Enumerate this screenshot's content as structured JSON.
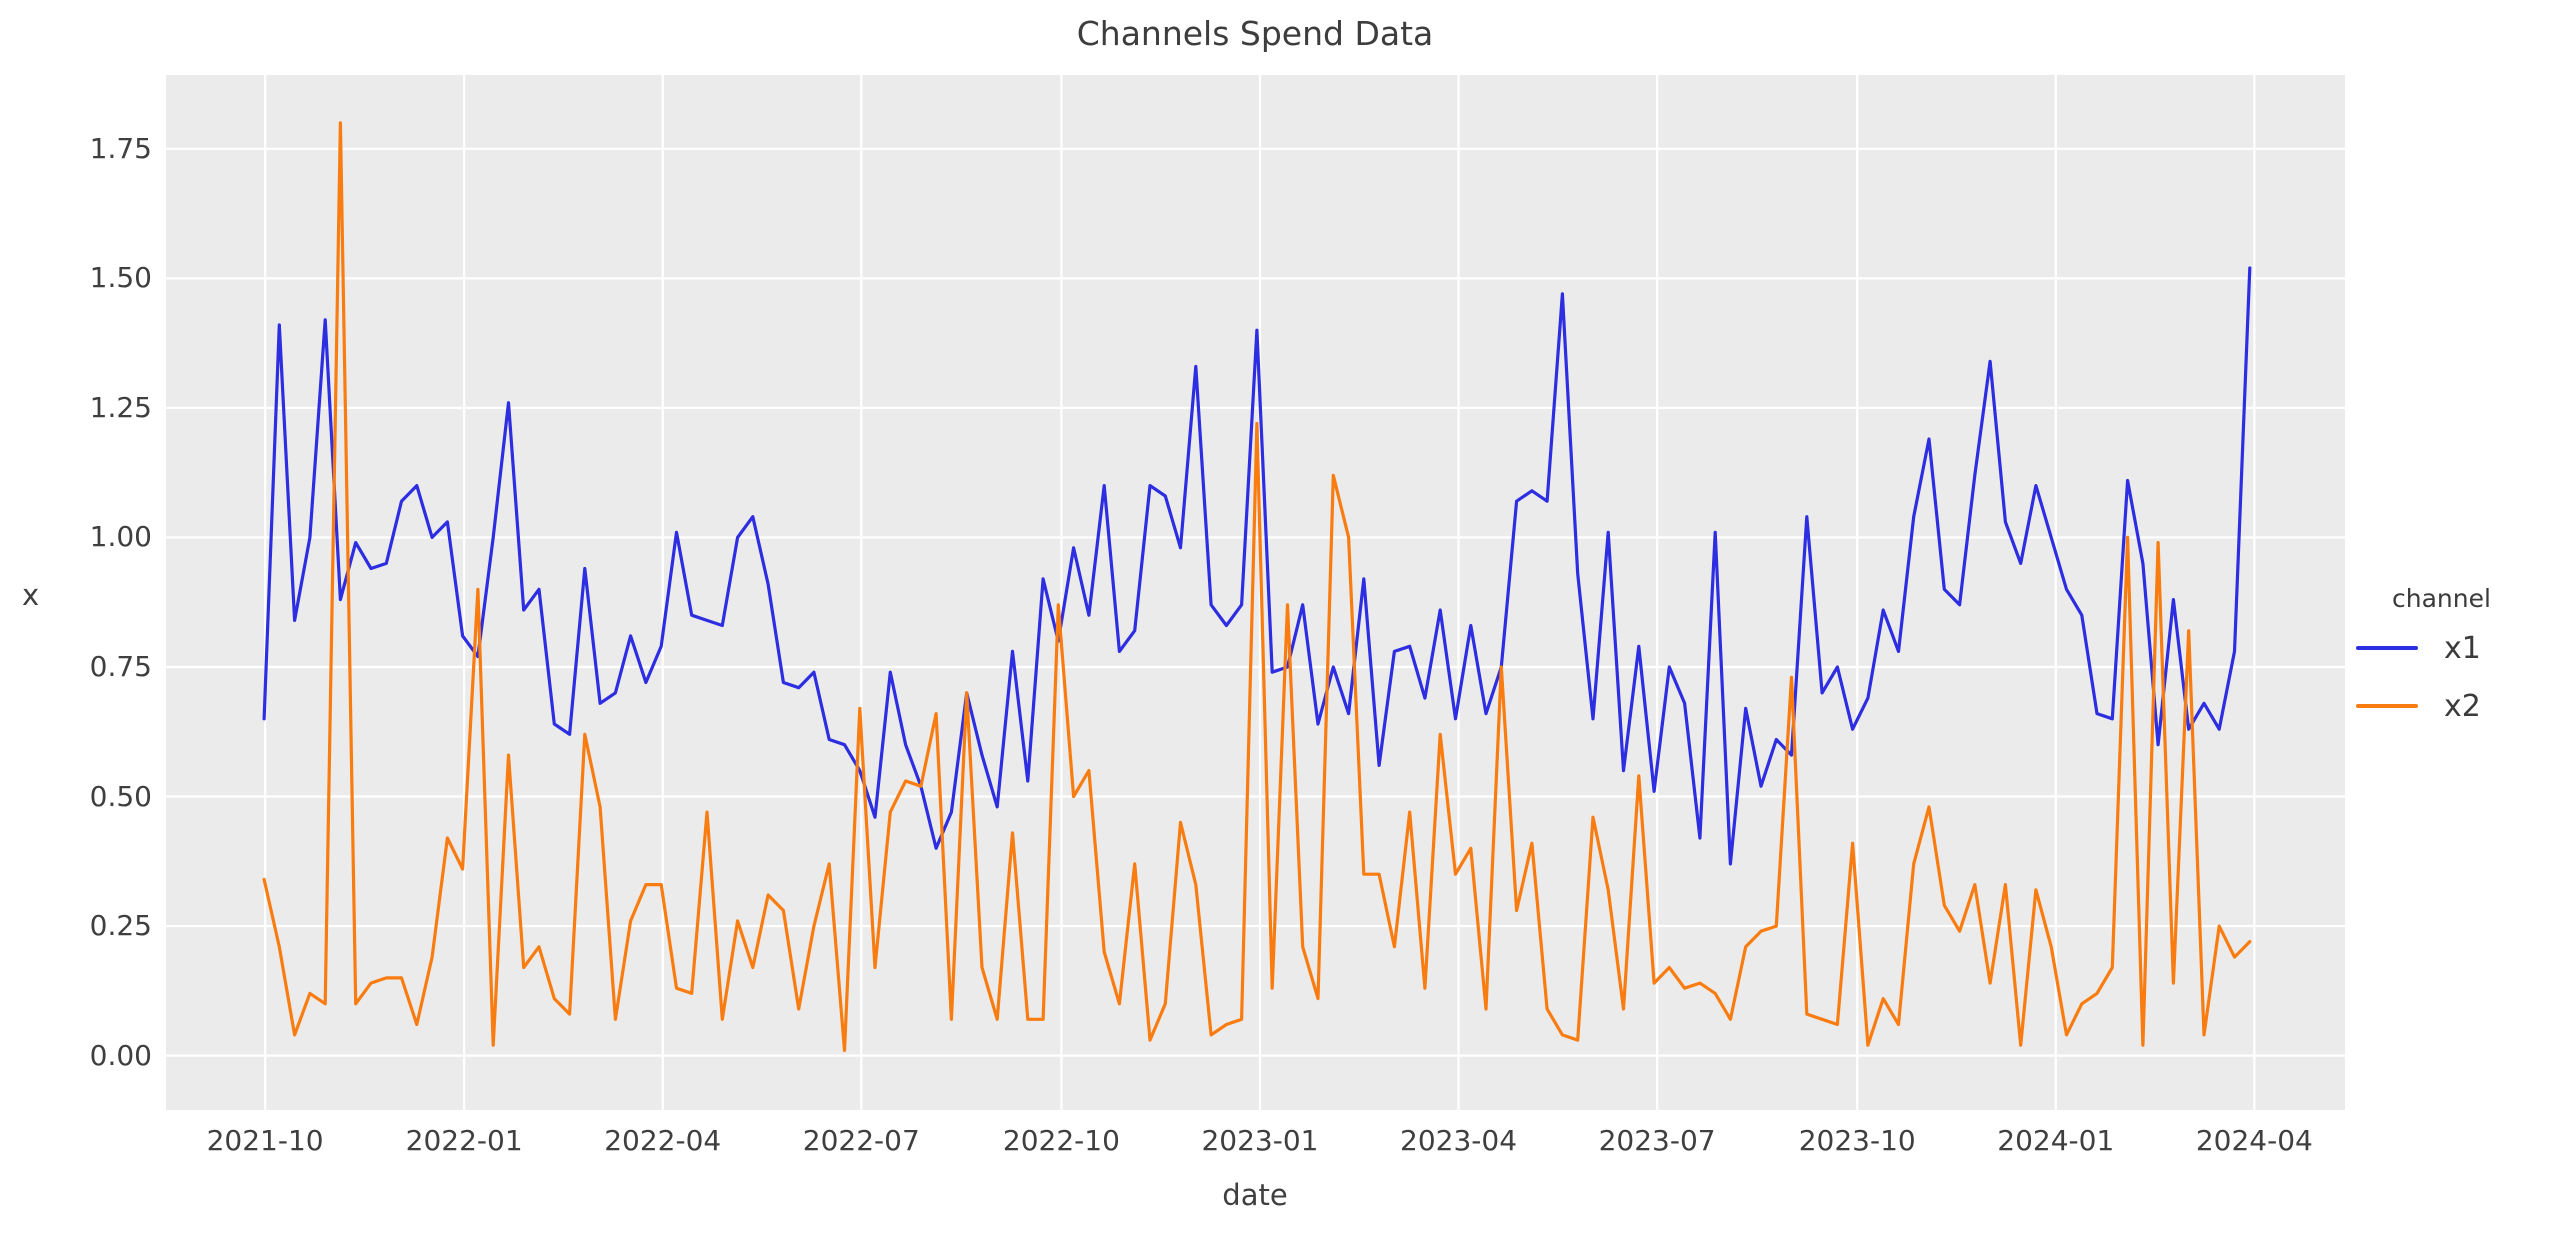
{
  "chart_data": {
    "type": "line",
    "title": "Channels Spend Data",
    "xlabel": "date",
    "ylabel": "x",
    "legend_title": "channel",
    "legend_position": "right-outside",
    "grid": true,
    "plot_bg_color": "#ebebeb",
    "grid_color": "#ffffff",
    "figure_bg_color": "#ffffff",
    "x_start_date": "2021-10-03",
    "x_step_days": 7,
    "n_points": 131,
    "ylim": [
      -0.105,
      1.8925
    ],
    "yticks": {
      "values": [
        0.0,
        0.25,
        0.5,
        0.75,
        1.0,
        1.25,
        1.5,
        1.75
      ],
      "labels": [
        "0.00",
        "0.25",
        "0.50",
        "0.75",
        "1.00",
        "1.25",
        "1.50",
        "1.75"
      ]
    },
    "xticks": {
      "positions": [
        0.07,
        13.1,
        26.1,
        39.1,
        52.2,
        65.2,
        78.2,
        91.2,
        104.3,
        117.3,
        130.3
      ],
      "labels": [
        "2021-10",
        "2022-01",
        "2022-04",
        "2022-07",
        "2022-10",
        "2023-01",
        "2023-04",
        "2023-07",
        "2023-10",
        "2024-01",
        "2024-04"
      ]
    },
    "series": [
      {
        "name": "x1",
        "color": "#2d2de1",
        "values": [
          0.65,
          1.41,
          0.84,
          1.0,
          1.42,
          0.88,
          0.99,
          0.94,
          0.95,
          1.07,
          1.1,
          1.0,
          1.03,
          0.81,
          0.77,
          1.0,
          1.26,
          0.86,
          0.9,
          0.64,
          0.62,
          0.94,
          0.68,
          0.7,
          0.81,
          0.72,
          0.79,
          1.01,
          0.85,
          0.84,
          0.83,
          1.0,
          1.04,
          0.91,
          0.72,
          0.71,
          0.74,
          0.61,
          0.6,
          0.55,
          0.46,
          0.74,
          0.6,
          0.52,
          0.4,
          0.47,
          0.7,
          0.58,
          0.48,
          0.78,
          0.53,
          0.92,
          0.8,
          0.98,
          0.85,
          1.1,
          0.78,
          0.82,
          1.1,
          1.08,
          0.98,
          1.33,
          0.87,
          0.83,
          0.87,
          1.4,
          0.74,
          0.75,
          0.87,
          0.64,
          0.75,
          0.66,
          0.92,
          0.56,
          0.78,
          0.79,
          0.69,
          0.86,
          0.65,
          0.83,
          0.66,
          0.75,
          1.07,
          1.09,
          1.07,
          1.47,
          0.93,
          0.65,
          1.01,
          0.55,
          0.79,
          0.51,
          0.75,
          0.68,
          0.42,
          1.01,
          0.37,
          0.67,
          0.52,
          0.61,
          0.58,
          1.04,
          0.7,
          0.75,
          0.63,
          0.69,
          0.86,
          0.78,
          1.04,
          1.19,
          0.9,
          0.87,
          1.12,
          1.34,
          1.03,
          0.95,
          1.1,
          1.0,
          0.9,
          0.85,
          0.66,
          0.65,
          1.11,
          0.95,
          0.6,
          0.88,
          0.63,
          0.68,
          0.63,
          0.78,
          1.52
        ]
      },
      {
        "name": "x2",
        "color": "#f97c11",
        "values": [
          0.34,
          0.21,
          0.04,
          0.12,
          0.1,
          1.8,
          0.1,
          0.14,
          0.15,
          0.15,
          0.06,
          0.19,
          0.42,
          0.36,
          0.9,
          0.02,
          0.58,
          0.17,
          0.21,
          0.11,
          0.08,
          0.62,
          0.48,
          0.07,
          0.26,
          0.33,
          0.33,
          0.13,
          0.12,
          0.47,
          0.07,
          0.26,
          0.17,
          0.31,
          0.28,
          0.09,
          0.25,
          0.37,
          0.01,
          0.67,
          0.17,
          0.47,
          0.53,
          0.52,
          0.66,
          0.07,
          0.7,
          0.17,
          0.07,
          0.43,
          0.07,
          0.07,
          0.87,
          0.5,
          0.55,
          0.2,
          0.1,
          0.37,
          0.03,
          0.1,
          0.45,
          0.33,
          0.04,
          0.06,
          0.07,
          1.22,
          0.13,
          0.87,
          0.21,
          0.11,
          1.12,
          1.0,
          0.35,
          0.35,
          0.21,
          0.47,
          0.13,
          0.62,
          0.35,
          0.4,
          0.09,
          0.75,
          0.28,
          0.41,
          0.09,
          0.04,
          0.03,
          0.46,
          0.32,
          0.09,
          0.54,
          0.14,
          0.17,
          0.13,
          0.14,
          0.12,
          0.07,
          0.21,
          0.24,
          0.25,
          0.73,
          0.08,
          0.07,
          0.06,
          0.41,
          0.02,
          0.11,
          0.06,
          0.37,
          0.48,
          0.29,
          0.24,
          0.33,
          0.14,
          0.33,
          0.02,
          0.32,
          0.21,
          0.04,
          0.1,
          0.12,
          0.17,
          1.0,
          0.02,
          0.99,
          0.14,
          0.82,
          0.04,
          0.25,
          0.19,
          0.22
        ]
      }
    ]
  },
  "legend": {
    "title": "channel",
    "items": [
      {
        "label": "x1",
        "color": "#2d2de1"
      },
      {
        "label": "x2",
        "color": "#f97c11"
      }
    ]
  },
  "labels": {
    "title": "Channels Spend Data",
    "xlabel": "date",
    "ylabel": "x"
  }
}
